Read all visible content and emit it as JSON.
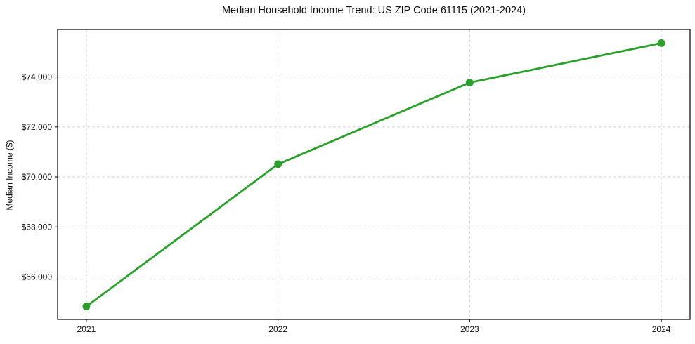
{
  "chart_data": {
    "type": "line",
    "title": "Median Household Income Trend: US ZIP Code 61115 (2021-2024)",
    "xlabel": "",
    "ylabel": "Median Income ($)",
    "x": [
      2021,
      2022,
      2023,
      2024
    ],
    "x_tick_labels": [
      "2021",
      "2022",
      "2023",
      "2024"
    ],
    "y_ticks": [
      66000,
      68000,
      70000,
      72000,
      74000
    ],
    "y_tick_labels": [
      "$66,000",
      "$68,000",
      "$70,000",
      "$72,000",
      "$74,000"
    ],
    "series": [
      {
        "name": "Median household income",
        "values": [
          64820,
          70510,
          73775,
          75355
        ]
      }
    ],
    "xlim": [
      2020.85,
      2024.15
    ],
    "ylim": [
      64300,
      75900
    ],
    "grid": true,
    "legend": "none",
    "colors": {
      "line": "#2ca02c",
      "marker": "#2ca02c",
      "grid": "#d0d0d0",
      "spine": "#000000",
      "tick_text": "#111111",
      "background": "#ffffff"
    }
  }
}
